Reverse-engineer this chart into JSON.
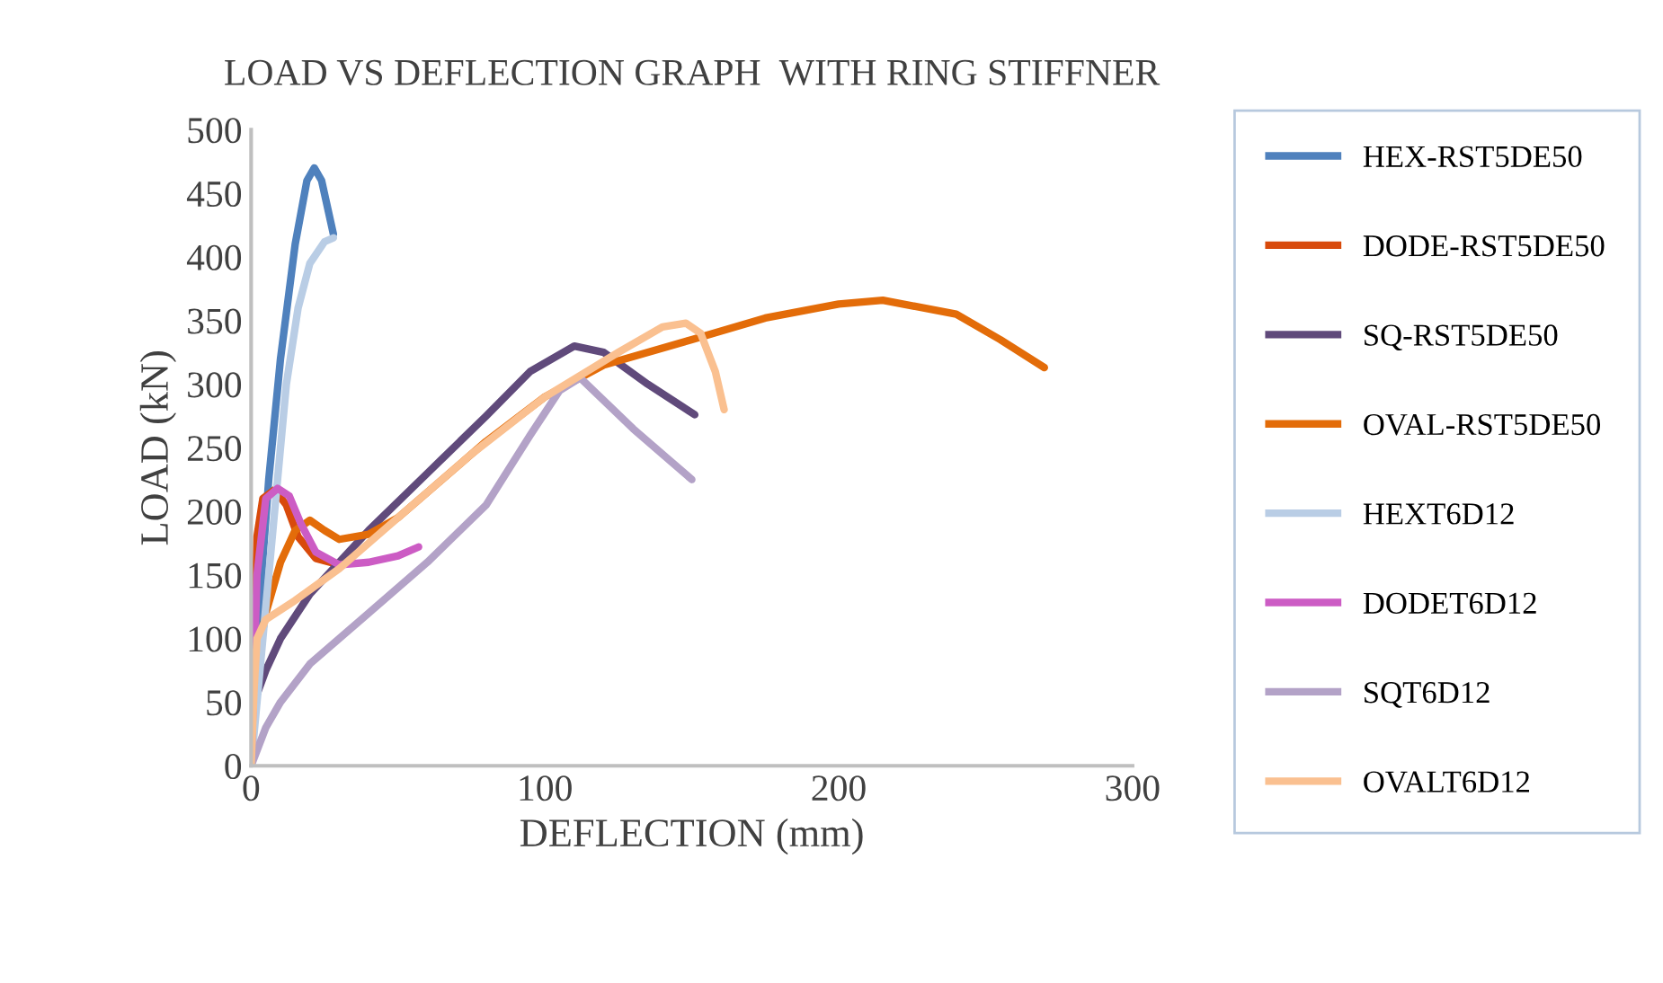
{
  "chart_data": {
    "type": "line",
    "title": "LOAD VS DEFLECTION GRAPH  WITH RING STIFFNER",
    "xlabel": "DEFLECTION (mm)",
    "ylabel": "LOAD (kN)",
    "xlim": [
      0,
      300
    ],
    "xticks": [
      0,
      100,
      200,
      300
    ],
    "ylim": [
      0,
      500
    ],
    "yticks": [
      0,
      50,
      100,
      150,
      200,
      250,
      300,
      350,
      400,
      450,
      500
    ],
    "grid": false,
    "legend": "right",
    "marker": "none",
    "line_style": "solid",
    "series": [
      {
        "name": "HEX-RST5DE50",
        "color": "#4f81bd",
        "x": [
          0,
          2,
          6,
          10,
          15,
          19,
          21.5,
          24,
          28
        ],
        "values": [
          0,
          100,
          225,
          320,
          410,
          460,
          470,
          460,
          418
        ]
      },
      {
        "name": "DODE-RST5DE50",
        "color": "#d84a0b",
        "x": [
          0,
          2,
          4,
          8,
          12,
          16,
          22,
          30
        ],
        "values": [
          0,
          180,
          210,
          217,
          205,
          180,
          163,
          158
        ]
      },
      {
        "name": "SQ-RST5DE50",
        "color": "#604a7b",
        "x": [
          0,
          1,
          5,
          10,
          20,
          40,
          60,
          80,
          95,
          110,
          120,
          135,
          151
        ],
        "values": [
          0,
          50,
          75,
          100,
          135,
          185,
          230,
          275,
          310,
          330,
          325,
          300,
          276
        ]
      },
      {
        "name": "OVAL-RST5DE50",
        "color": "#e36c09",
        "x": [
          0,
          2,
          5,
          10,
          15,
          20,
          25,
          30,
          40,
          50,
          60,
          80,
          100,
          120,
          150,
          175,
          200,
          215,
          240,
          255,
          270
        ],
        "values": [
          0,
          80,
          120,
          160,
          185,
          193,
          185,
          178,
          182,
          195,
          215,
          255,
          290,
          315,
          335,
          352,
          363,
          366,
          355,
          335,
          313
        ]
      },
      {
        "name": "HEXT6D12",
        "color": "#b9cde5",
        "x": [
          0,
          4,
          8,
          12,
          16,
          20,
          25,
          28
        ],
        "values": [
          0,
          100,
          200,
          300,
          360,
          395,
          412,
          415
        ]
      },
      {
        "name": "DODET6D12",
        "color": "#cc5cc4",
        "x": [
          0,
          2,
          5,
          9,
          13,
          17,
          22,
          30,
          40,
          50,
          57
        ],
        "values": [
          0,
          150,
          210,
          218,
          212,
          190,
          168,
          158,
          160,
          165,
          172
        ]
      },
      {
        "name": "SQT6D12",
        "color": "#b3a2c7",
        "x": [
          0,
          5,
          10,
          20,
          40,
          60,
          80,
          95,
          105,
          112,
          130,
          150
        ],
        "values": [
          0,
          30,
          50,
          80,
          120,
          160,
          205,
          260,
          295,
          305,
          265,
          225
        ]
      },
      {
        "name": "OVALT6D12",
        "color": "#fac090",
        "x": [
          0,
          1,
          2,
          5,
          15,
          30,
          50,
          75,
          100,
          125,
          140,
          148,
          153,
          158,
          161
        ],
        "values": [
          0,
          60,
          100,
          115,
          130,
          155,
          195,
          245,
          290,
          325,
          345,
          348,
          340,
          310,
          280
        ]
      }
    ]
  }
}
